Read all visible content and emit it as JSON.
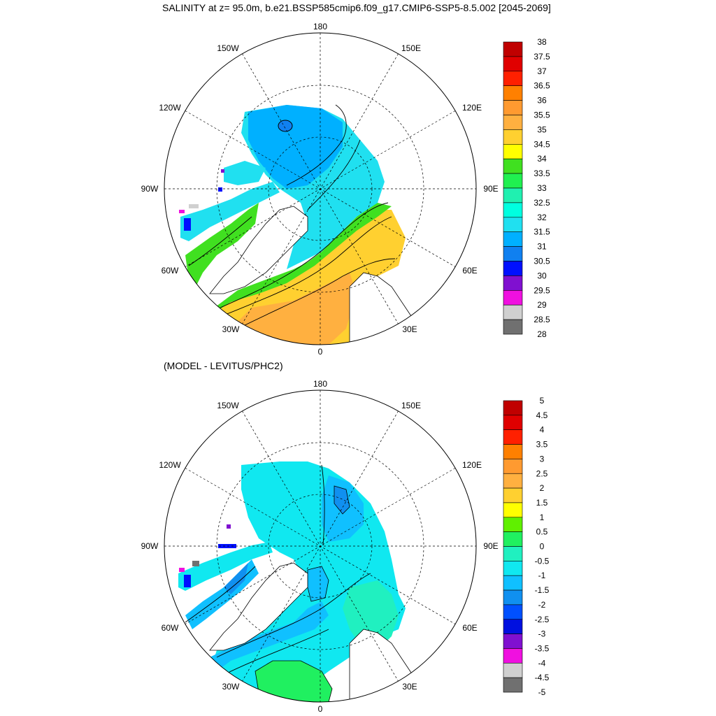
{
  "titles": {
    "main": "SALINITY at z=  95.0m, b.e21.BSSP585cmip6.f09_g17.CMIP6-SSP5-8.5.002 [2045-2069]",
    "sub": "(MODEL - LEVITUS/PHC2)"
  },
  "longitude_labels": {
    "top": "180",
    "bottom": "0",
    "w150": "150W",
    "e150": "150E",
    "w120": "120W",
    "e120": "120E",
    "w90": "90W",
    "e90": "90E",
    "w60": "60W",
    "e60": "60E",
    "w30": "30W",
    "e30": "30E"
  },
  "colorbars": {
    "salinity": {
      "labels": [
        "38",
        "37.5",
        "37",
        "36.5",
        "36",
        "35.5",
        "35",
        "34.5",
        "34",
        "33.5",
        "33",
        "32.5",
        "32",
        "31.5",
        "31",
        "30.5",
        "30",
        "29.5",
        "29",
        "28.5",
        "28"
      ],
      "colors": [
        "#c00000",
        "#e00000",
        "#ff2000",
        "#ff8000",
        "#ff9a30",
        "#ffb040",
        "#ffd030",
        "#ffff00",
        "#40e020",
        "#20f050",
        "#20f0b0",
        "#00ffe0",
        "#20e0f0",
        "#00b0ff",
        "#1080f0",
        "#0010ff",
        "#8010d0",
        "#f010e0",
        "#d0d0d0",
        "#707070"
      ]
    },
    "difference": {
      "labels": [
        "5",
        "4.5",
        "4",
        "3.5",
        "3",
        "2.5",
        "2",
        "1.5",
        "1",
        "0.5",
        "0",
        "-0.5",
        "-1",
        "-1.5",
        "-2",
        "-2.5",
        "-3",
        "-3.5",
        "-4",
        "-4.5",
        "-5"
      ],
      "colors": [
        "#c00000",
        "#e00000",
        "#ff2000",
        "#ff8000",
        "#ff9a30",
        "#ffb040",
        "#ffd030",
        "#ffff00",
        "#60f000",
        "#20f060",
        "#20f0c0",
        "#10e8f0",
        "#10c0ff",
        "#1090f0",
        "#0050ff",
        "#0010e0",
        "#8010d0",
        "#f010e0",
        "#d0d0d0",
        "#707070"
      ]
    }
  }
}
